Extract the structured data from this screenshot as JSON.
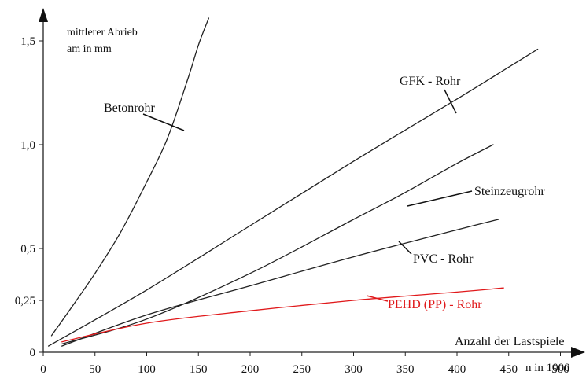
{
  "chart_data": {
    "type": "line",
    "ylabel_line1": "mittlerer Abrieb",
    "ylabel_line2": "am in mm",
    "xlabel": "Anzahl der Lastspiele",
    "xunit": "n in 1000",
    "xlim": [
      0,
      530
    ],
    "ylim": [
      0,
      1.62
    ],
    "x_ticks": [
      0,
      50,
      100,
      150,
      200,
      250,
      300,
      350,
      400,
      450,
      500
    ],
    "x_tick_labels": [
      "0",
      "50",
      "100",
      "150",
      "200",
      "250",
      "300",
      "350",
      "400",
      "450",
      "500"
    ],
    "y_ticks": [
      0,
      0.25,
      0.5,
      1.0,
      1.5
    ],
    "y_tick_labels": [
      "0",
      "0,25",
      "0,5",
      "1,0",
      "1,5"
    ],
    "grid": false,
    "series": [
      {
        "name": "Betonrohr",
        "color": "#222222",
        "x": [
          8,
          25,
          50,
          75,
          100,
          120,
          140,
          150,
          160
        ],
        "y": [
          0.08,
          0.2,
          0.38,
          0.58,
          0.82,
          1.03,
          1.32,
          1.48,
          1.61
        ]
      },
      {
        "name": "GFK - Rohr",
        "color": "#222222",
        "x": [
          5,
          100,
          200,
          300,
          400,
          478
        ],
        "y": [
          0.03,
          0.3,
          0.61,
          0.92,
          1.22,
          1.46
        ]
      },
      {
        "name": "Steinzeugrohr",
        "color": "#222222",
        "x": [
          18,
          100,
          200,
          300,
          350,
          400,
          435
        ],
        "y": [
          0.04,
          0.16,
          0.38,
          0.64,
          0.77,
          0.91,
          1.0
        ]
      },
      {
        "name": "PVC - Rohr",
        "color": "#222222",
        "x": [
          18,
          100,
          200,
          300,
          400,
          440
        ],
        "y": [
          0.03,
          0.18,
          0.32,
          0.46,
          0.59,
          0.64
        ]
      },
      {
        "name": "PEHD (PP) - Rohr",
        "color": "#e0191b",
        "x": [
          18,
          100,
          200,
          300,
          400,
          445
        ],
        "y": [
          0.05,
          0.14,
          0.2,
          0.25,
          0.29,
          0.31
        ]
      }
    ]
  }
}
